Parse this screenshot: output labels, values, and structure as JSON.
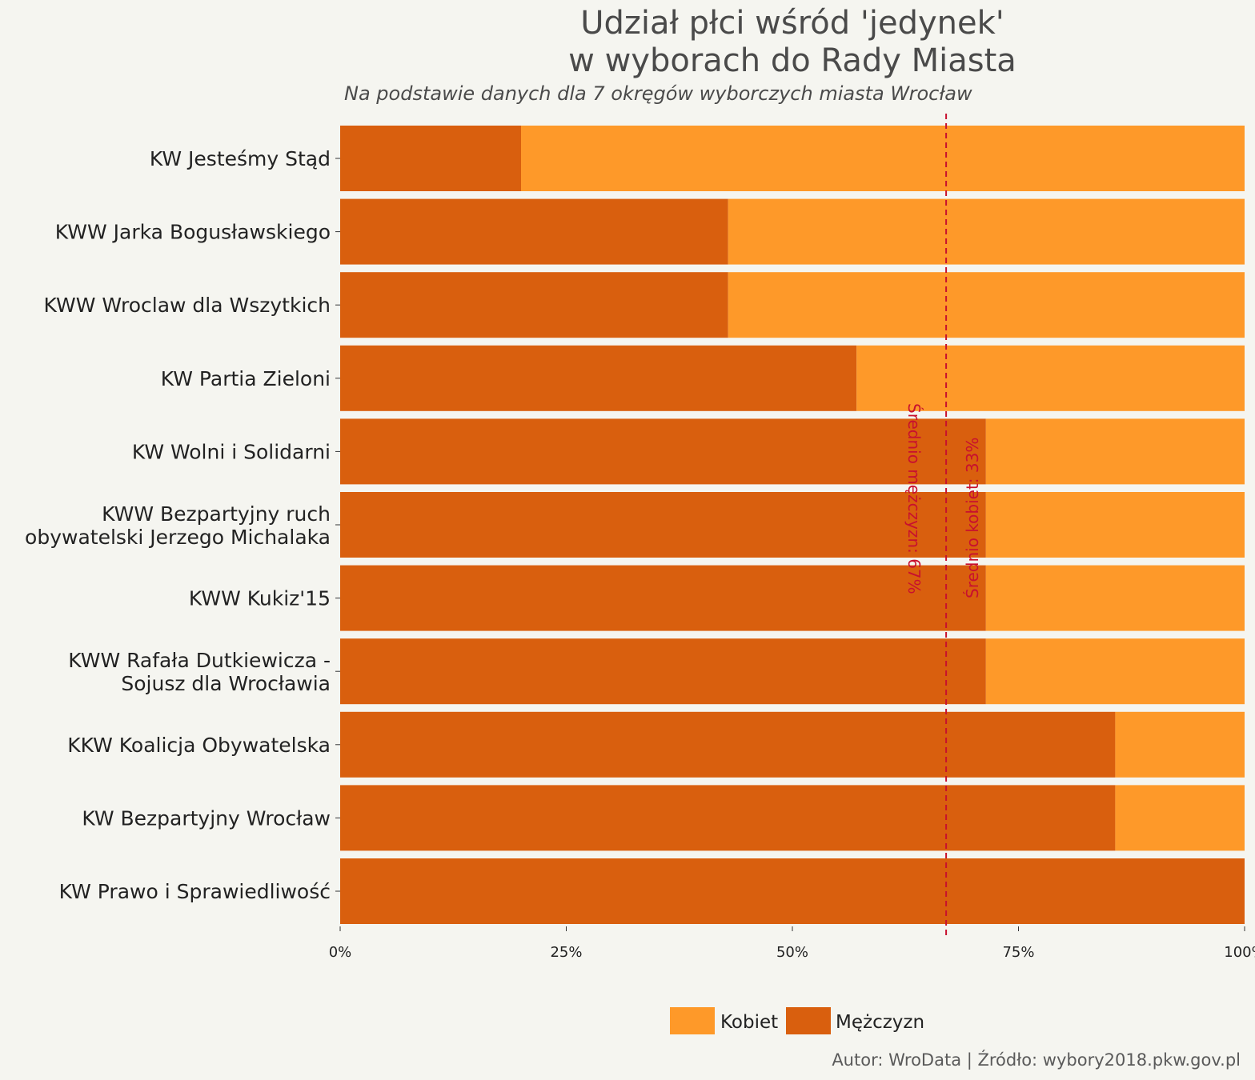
{
  "chart_data": {
    "type": "bar",
    "orientation": "horizontal",
    "stacked": true,
    "title": [
      "Udział płci wśród 'jedynek'",
      "w wyborach do Rady Miasta"
    ],
    "subtitle": "Na podstawie danych dla 7 okręgów wyborczych miasta Wrocław",
    "caption": "Autor: WroData | Źródło: wybory2018.pkw.gov.pl",
    "categories": [
      "KW Jesteśmy Stąd",
      "KWW Jarka Bogusławskiego",
      "KWW Wroclaw dla Wszytkich",
      "KW Partia Zieloni",
      "KW Wolni i Solidarni",
      "KWW Bezpartyjny ruch\nobywatelski Jerzego Michalaka",
      "KWW Kukiz'15",
      "KWW Rafała Dutkiewicza -\nSojusz dla Wrocławia",
      "KKW Koalicja Obywatelska",
      "KW Bezpartyjny Wrocław",
      "KW Prawo i Sprawiedliwość"
    ],
    "series": [
      {
        "name": "Mężczyzn",
        "color": "#d95f0e",
        "values": [
          20,
          42.9,
          42.9,
          57.1,
          71.4,
          71.4,
          71.4,
          71.4,
          85.7,
          85.7,
          100
        ]
      },
      {
        "name": "Kobiet",
        "color": "#fe9929",
        "values": [
          80,
          57.1,
          57.1,
          42.9,
          28.6,
          28.6,
          28.6,
          28.6,
          14.3,
          14.3,
          0
        ]
      }
    ],
    "xlim": [
      0,
      100
    ],
    "x_ticks": [
      "0%",
      "25%",
      "50%",
      "75%",
      "100%"
    ],
    "reference_line": {
      "value": 67,
      "color": "#c8102e",
      "style": "dashed"
    },
    "annotations": [
      "Średnio mężczyzn: 67%",
      "Średnio kobiet: 33%"
    ],
    "legend": {
      "position": "bottom",
      "items": [
        {
          "label": "Kobiet",
          "color": "#fe9929"
        },
        {
          "label": "Mężczyzn",
          "color": "#d95f0e"
        }
      ]
    },
    "grid": false
  }
}
